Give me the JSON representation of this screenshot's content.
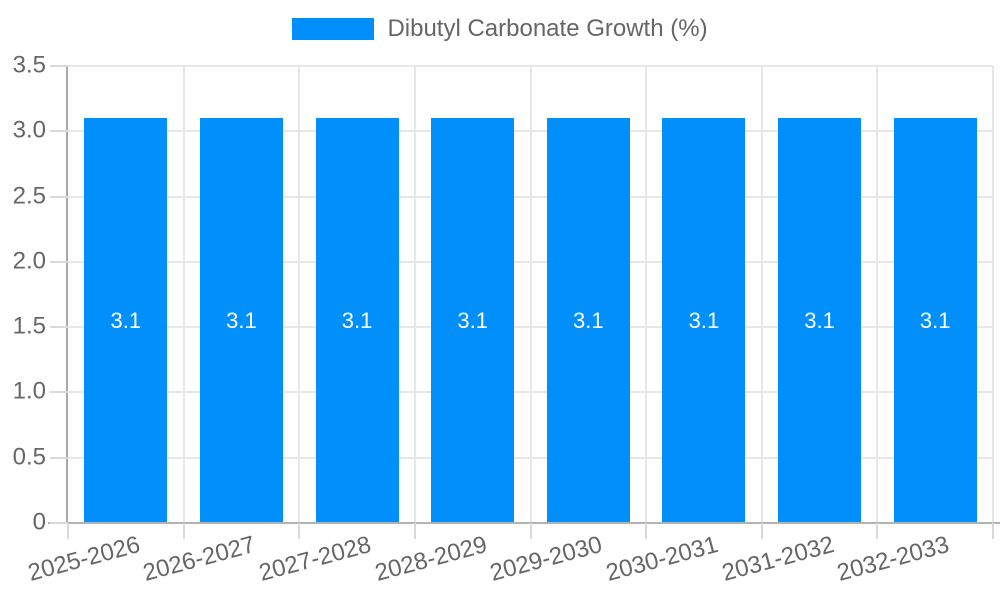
{
  "chart_data": {
    "type": "bar",
    "title": "Dibutyl Carbonate Growth (%)",
    "legend": [
      {
        "label": "Dibutyl Carbonate Growth (%)",
        "color": "#008FFB"
      }
    ],
    "legend_position": "top-center",
    "categories": [
      "2025-2026",
      "2026-2027",
      "2027-2028",
      "2028-2029",
      "2029-2030",
      "2030-2031",
      "2031-2032",
      "2032-2033"
    ],
    "series": [
      {
        "name": "Dibutyl Carbonate Growth (%)",
        "values": [
          3.1,
          3.1,
          3.1,
          3.1,
          3.1,
          3.1,
          3.1,
          3.1
        ]
      }
    ],
    "bar_value_labels": [
      "3.1",
      "3.1",
      "3.1",
      "3.1",
      "3.1",
      "3.1",
      "3.1",
      "3.1"
    ],
    "xlabel": "",
    "ylabel": "",
    "ylim": [
      0,
      3.5
    ],
    "yticks": [
      0,
      0.5,
      1,
      1.5,
      2,
      2.5,
      3,
      3.5
    ],
    "ytick_labels": [
      "0",
      "0.5",
      "1.0",
      "1.5",
      "2.0",
      "2.5",
      "3.0",
      "3.5"
    ],
    "grid": true,
    "colors": {
      "bar": "#008FFB",
      "bar_value_text": "#ffffff",
      "axis_text": "#666666",
      "gridline": "#e7e7e7",
      "axis_line": "#adadad"
    }
  }
}
